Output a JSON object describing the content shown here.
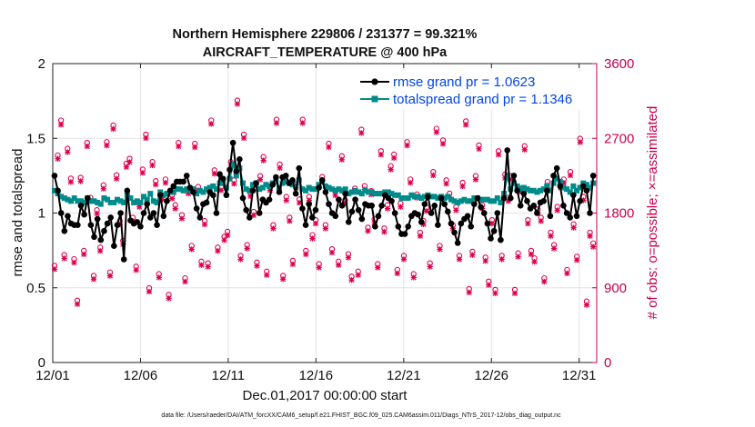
{
  "chart_data": {
    "type": "line",
    "title_line1": "Northern Hemisphere 229806 / 231377 = 99.321%",
    "title_line2": "AIRCRAFT_TEMPERATURE @ 400 hPa",
    "xlabel": "Dec.01,2017 00:00:00 start",
    "ylabel": "rmse and totalspread",
    "y2label": "# of obs: o=possible; ×=assimilated",
    "footnote": "data file: /Users/raeder/DAI/ATM_forcXX/CAM6_setup/f.e21.FHIST_BGC.f09_025.CAM6assim.011/Diags_NTrS_2017-12/obs_diag_output.nc",
    "xticks": [
      "12/01",
      "12/06",
      "12/11",
      "12/16",
      "12/21",
      "12/26",
      "12/31"
    ],
    "xtick_days": [
      0,
      5,
      10,
      15,
      20,
      25,
      30
    ],
    "xlim": [
      0,
      31
    ],
    "yticks": [
      "0",
      "0.5",
      "1",
      "1.5",
      "2"
    ],
    "ylim": [
      0,
      2
    ],
    "y2ticks": [
      "0",
      "900",
      "1800",
      "2700",
      "3600"
    ],
    "y2lim": [
      0,
      3600
    ],
    "grid": true,
    "legend_position": "top-right",
    "series": [
      {
        "name": "rmse grand pr = 1.0623",
        "color": "#000000",
        "marker": "filled-circle",
        "values": [
          1.25,
          1.15,
          1.0,
          0.88,
          0.98,
          0.93,
          0.92,
          0.92,
          1.05,
          0.99,
          1.1,
          0.92,
          0.84,
          0.96,
          0.82,
          0.88,
          0.93,
          0.97,
          0.78,
          0.92,
          1.0,
          0.69,
          1.15,
          0.95,
          0.93,
          0.94,
          0.91,
          1.0,
          1.06,
          0.97,
          1.0,
          0.92,
          1.12,
          0.98,
          1.08,
          1.15,
          1.18,
          1.21,
          1.21,
          1.21,
          1.25,
          1.17,
          1.14,
          1.03,
          0.97,
          1.06,
          1.07,
          1.14,
          1.12,
          1.0,
          1.26,
          1.23,
          1.12,
          1.29,
          1.47,
          1.28,
          1.36,
          1.1,
          1.02,
          0.97,
          1.15,
          1.2,
          1.0,
          1.09,
          1.07,
          1.09,
          1.19,
          1.24,
          1.14,
          1.24,
          1.25,
          1.2,
          1.22,
          1.13,
          1.3,
          1.03,
          0.92,
          1.06,
          0.97,
          1.02,
          1.17,
          1.22,
          1.14,
          1.06,
          1.0,
          0.98,
          1.09,
          1.05,
          1.13,
          0.94,
          1.01,
          1.09,
          1.02,
          0.96,
          1.06,
          1.05,
          1.05,
          0.91,
          0.98,
          1.05,
          1.12,
          1.1,
          1.08,
          1.0,
          0.91,
          0.86,
          0.86,
          0.91,
          0.98,
          1.0,
          0.99,
          0.94,
          1.06,
          1.11,
          1.0,
          1.05,
          0.92,
          1.1,
          1.06,
          1.01,
          0.93,
          0.87,
          0.8,
          0.93,
          0.96,
          0.98,
          0.91,
          1.06,
          1.1,
          1.04,
          1.0,
          0.93,
          0.83,
          0.88,
          1.0,
          0.82,
          1.1,
          1.42,
          1.1,
          1.25,
          1.15,
          1.05,
          1.13,
          1.08,
          1.03,
          1.05,
          1.0,
          1.07,
          1.08,
          1.15,
          0.98,
          1.25,
          1.3,
          1.18,
          1.05,
          1.0,
          0.97,
          1.12,
          0.98,
          1.08,
          1.18,
          1.15,
          1.0,
          1.25
        ]
      },
      {
        "name": "totalspread grand pr = 1.1346",
        "color": "#008b8b",
        "marker": "filled-square",
        "values": [
          1.15,
          1.13,
          1.11,
          1.1,
          1.09,
          1.08,
          1.1,
          1.08,
          1.08,
          1.07,
          1.1,
          1.08,
          1.08,
          1.07,
          1.06,
          1.1,
          1.09,
          1.07,
          1.07,
          1.09,
          1.08,
          1.07,
          1.12,
          1.1,
          1.07,
          1.08,
          1.07,
          1.11,
          1.09,
          1.13,
          1.08,
          1.07,
          1.14,
          1.12,
          1.13,
          1.14,
          1.14,
          1.16,
          1.16,
          1.15,
          1.16,
          1.15,
          1.16,
          1.13,
          1.15,
          1.14,
          1.16,
          1.17,
          1.18,
          1.16,
          1.2,
          1.2,
          1.17,
          1.23,
          1.33,
          1.25,
          1.3,
          1.2,
          1.16,
          1.15,
          1.19,
          1.2,
          1.16,
          1.17,
          1.19,
          1.18,
          1.2,
          1.21,
          1.17,
          1.2,
          1.21,
          1.2,
          1.19,
          1.18,
          1.22,
          1.16,
          1.15,
          1.17,
          1.16,
          1.16,
          1.19,
          1.21,
          1.18,
          1.17,
          1.16,
          1.15,
          1.16,
          1.15,
          1.16,
          1.13,
          1.14,
          1.15,
          1.14,
          1.13,
          1.15,
          1.14,
          1.14,
          1.13,
          1.13,
          1.13,
          1.14,
          1.14,
          1.13,
          1.12,
          1.12,
          1.1,
          1.1,
          1.1,
          1.12,
          1.11,
          1.11,
          1.1,
          1.11,
          1.12,
          1.11,
          1.11,
          1.1,
          1.11,
          1.1,
          1.11,
          1.09,
          1.08,
          1.07,
          1.08,
          1.09,
          1.08,
          1.08,
          1.1,
          1.1,
          1.09,
          1.09,
          1.09,
          1.08,
          1.08,
          1.1,
          1.07,
          1.13,
          1.25,
          1.16,
          1.2,
          1.18,
          1.16,
          1.17,
          1.16,
          1.15,
          1.15,
          1.14,
          1.15,
          1.16,
          1.18,
          1.15,
          1.2,
          1.23,
          1.21,
          1.17,
          1.16,
          1.14,
          1.18,
          1.15,
          1.17,
          1.2,
          1.19,
          1.17,
          1.2
        ]
      },
      {
        "name": "possible obs",
        "color": "#e0004a",
        "marker": "open-circle",
        "axis": "right",
        "values": [
          1150,
          2480,
          2900,
          1280,
          2560,
          2200,
          1230,
          730,
          2210,
          1330,
          2630,
          1970,
          1030,
          1820,
          1370,
          2120,
          2640,
          1070,
          2840,
          2240,
          1690,
          1450,
          2380,
          2440,
          1730,
          1140,
          1900,
          2310,
          2730,
          880,
          2400,
          2170,
          1050,
          1990,
          2190,
          800,
          2000,
          1880,
          2630,
          1760,
          1000,
          2060,
          1390,
          2620,
          2100,
          1200,
          1690,
          1180,
          2900,
          2300,
          1370,
          2100,
          1500,
          1560,
          2400,
          2180,
          3140,
          1270,
          2730,
          1400,
          2030,
          1800,
          1190,
          2230,
          2460,
          1080,
          2100,
          1640,
          2910,
          2370,
          1030,
          1980,
          1730,
          1210,
          2130,
          1950,
          2910,
          1330,
          1980,
          1520,
          1700,
          1170,
          2220,
          1640,
          2620,
          1350,
          2040,
          1200,
          2470,
          1940,
          1290,
          1020,
          2080,
          1080,
          2790,
          2110,
          1610,
          2050,
          1710,
          1170,
          2530,
          1600,
          1880,
          2350,
          2490,
          1100,
          1900,
          1270,
          2640,
          2190,
          1050,
          2010,
          1550,
          1690,
          1850,
          1180,
          2280,
          2800,
          1390,
          2660,
          2180,
          2020,
          1640,
          1860,
          1270,
          2150,
          2890,
          870,
          1320,
          2230,
          2600,
          1880,
          1250,
          960,
          1700,
          860,
          2530,
          1270,
          2250,
          1970,
          2230,
          860,
          1300,
          2080,
          2590,
          1700,
          1330,
          1240,
          1830,
          1730,
          1000,
          2160,
          1550,
          1400,
          1860,
          2130,
          2190,
          1100,
          2280,
          1650,
          1260,
          2680,
          1980,
          720,
          1550,
          1420
        ]
      },
      {
        "name": "assimilated obs",
        "color": "#e0004a",
        "marker": "x",
        "axis": "right",
        "values": [
          1140,
          2470,
          2880,
          1270,
          2550,
          2190,
          1220,
          720,
          2200,
          1320,
          2620,
          1960,
          1020,
          1810,
          1360,
          2110,
          2630,
          1060,
          2830,
          2230,
          1680,
          1440,
          2370,
          2430,
          1720,
          1130,
          1890,
          2300,
          2720,
          870,
          2390,
          2160,
          1040,
          1980,
          2180,
          790,
          1990,
          1870,
          2620,
          1750,
          990,
          2050,
          1380,
          2610,
          2090,
          1190,
          1680,
          1170,
          2890,
          2290,
          1360,
          2090,
          1490,
          1550,
          2390,
          2170,
          3130,
          1260,
          2720,
          1390,
          2020,
          1790,
          1180,
          2220,
          2450,
          1070,
          2090,
          1630,
          2900,
          2360,
          1020,
          1970,
          1720,
          1200,
          2120,
          1940,
          2900,
          1320,
          1970,
          1510,
          1690,
          1160,
          2210,
          1630,
          2610,
          1340,
          2030,
          1190,
          2460,
          1930,
          1280,
          1010,
          2070,
          1070,
          2780,
          2100,
          1600,
          2040,
          1700,
          1160,
          2520,
          1590,
          1870,
          2340,
          2480,
          1090,
          1890,
          1260,
          2630,
          2180,
          1040,
          2000,
          1540,
          1680,
          1840,
          1170,
          2270,
          2790,
          1380,
          2650,
          2170,
          2010,
          1630,
          1850,
          1260,
          2140,
          2880,
          860,
          1310,
          2220,
          2590,
          1870,
          1240,
          950,
          1690,
          850,
          2520,
          1260,
          2240,
          1960,
          2220,
          850,
          1290,
          2070,
          2580,
          1690,
          1320,
          1230,
          1820,
          1720,
          990,
          2150,
          1540,
          1390,
          1850,
          2120,
          2180,
          1090,
          2270,
          1640,
          1250,
          2670,
          1970,
          710,
          1540,
          1410
        ]
      }
    ]
  }
}
